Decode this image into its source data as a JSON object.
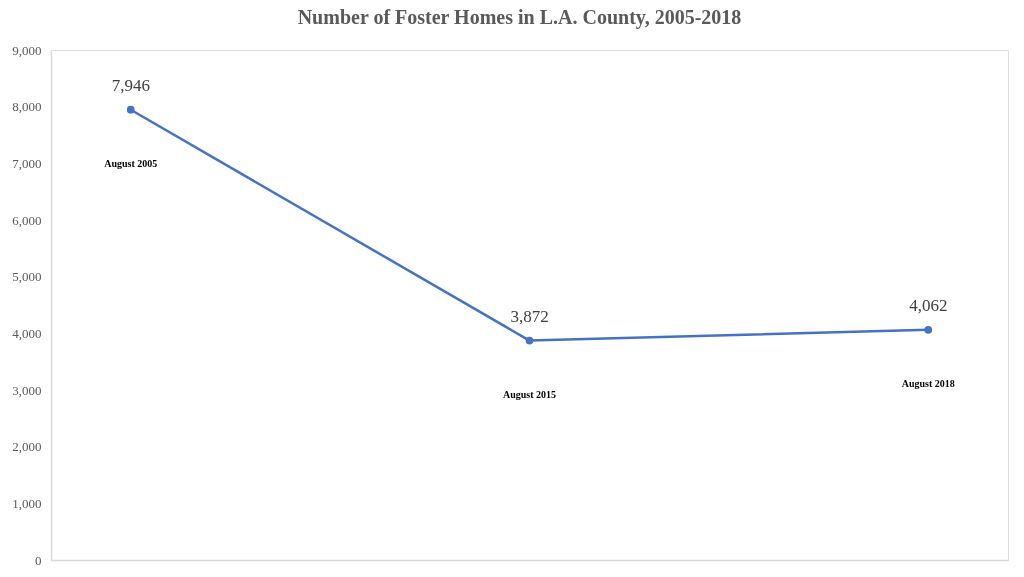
{
  "chart_data": {
    "type": "line",
    "title": "Number of Foster Homes in L.A. County, 2005-2018",
    "categories": [
      null,
      null,
      null
    ],
    "series": [
      {
        "color": "#4472c4",
        "values": [
          7946,
          3872,
          4062
        ],
        "value_labels": [
          "7,946",
          "3,872",
          "4,062"
        ]
      }
    ],
    "ylim": [
      0,
      9000
    ],
    "yticks": [
      0,
      {
        "value": 1000,
        "label": "1,000"
      },
      {
        "value": 2000,
        "label": "2,000"
      },
      {
        "value": 3000,
        "label": "3,000"
      },
      {
        "value": 4000,
        "label": "4,000"
      },
      {
        "value": 5000,
        "label": "5,000"
      },
      {
        "value": 6000,
        "label": "6,000"
      },
      {
        "value": 7000,
        "label": "7,000"
      },
      {
        "value": 8000,
        "label": "8,000"
      },
      {
        "value": 9000,
        "label": "9,000"
      }
    ],
    "tick_labels": "y",
    "grid": false,
    "marker": "circle",
    "line_style": "solid",
    "annotations": [
      "August 2005",
      "August 2015",
      "August 2018"
    ]
  }
}
